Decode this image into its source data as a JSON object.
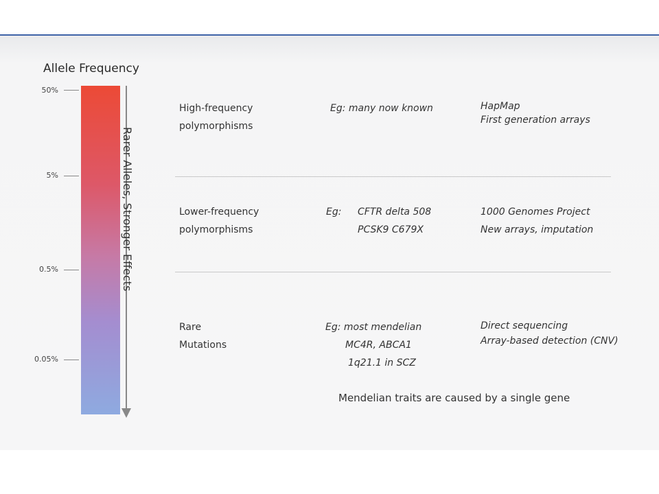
{
  "heading": "Allele Frequency",
  "ticks": [
    "50%",
    "5%",
    "0.5%",
    "0.05%"
  ],
  "arrow_label": "Rarer Alleles, Stronger Effects",
  "rows": [
    {
      "category": [
        "High-frequency",
        "polymorphisms"
      ],
      "examples_prefix": "Eg: many now known",
      "examples": [],
      "methods": [
        "HapMap",
        "First generation arrays"
      ]
    },
    {
      "category": [
        "Lower-frequency",
        "polymorphisms"
      ],
      "examples_prefix": "Eg:",
      "examples": [
        "CFTR delta 508",
        "PCSK9 C679X"
      ],
      "methods": [
        "1000 Genomes Project",
        "New arrays, imputation"
      ]
    },
    {
      "category": [
        "Rare",
        "Mutations"
      ],
      "examples_prefix": "Eg: most mendelian",
      "examples": [
        "MC4R, ABCA1",
        "1q21.1 in SCZ"
      ],
      "methods": [
        "Direct sequencing",
        "Array-based detection (CNV)"
      ]
    }
  ],
  "note": "Mendelian traits are caused by a single gene",
  "colors": {
    "bar_top": "#ec4a36",
    "bar_mid": "#c67aa6",
    "bar_bottom": "#8eaae0",
    "accent_rule": "#3f63a8"
  }
}
